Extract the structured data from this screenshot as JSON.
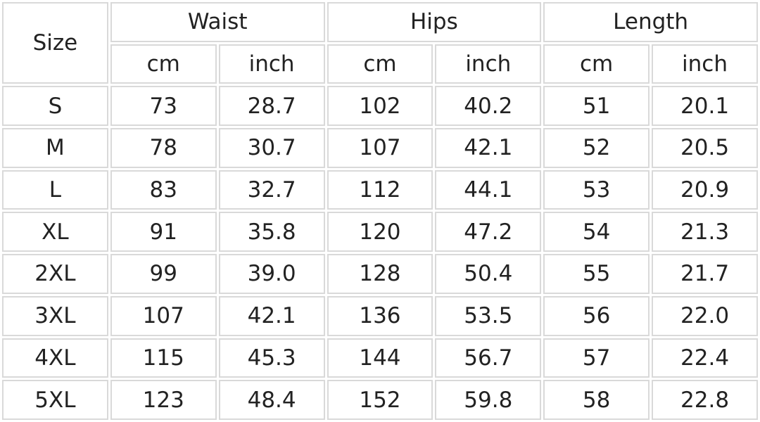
{
  "table": {
    "size_header": "Size",
    "groups": [
      "Waist",
      "Hips",
      "Length"
    ],
    "units": [
      "cm",
      "inch",
      "cm",
      "inch",
      "cm",
      "inch"
    ],
    "rows": [
      [
        "S",
        "73",
        "28.7",
        "102",
        "40.2",
        "51",
        "20.1"
      ],
      [
        "M",
        "78",
        "30.7",
        "107",
        "42.1",
        "52",
        "20.5"
      ],
      [
        "L",
        "83",
        "32.7",
        "112",
        "44.1",
        "53",
        "20.9"
      ],
      [
        "XL",
        "91",
        "35.8",
        "120",
        "47.2",
        "54",
        "21.3"
      ],
      [
        "2XL",
        "99",
        "39.0",
        "128",
        "50.4",
        "55",
        "21.7"
      ],
      [
        "3XL",
        "107",
        "42.1",
        "136",
        "53.5",
        "56",
        "22.0"
      ],
      [
        "4XL",
        "115",
        "45.3",
        "144",
        "56.7",
        "57",
        "22.4"
      ],
      [
        "5XL",
        "123",
        "48.4",
        "152",
        "59.8",
        "58",
        "22.8"
      ]
    ]
  }
}
